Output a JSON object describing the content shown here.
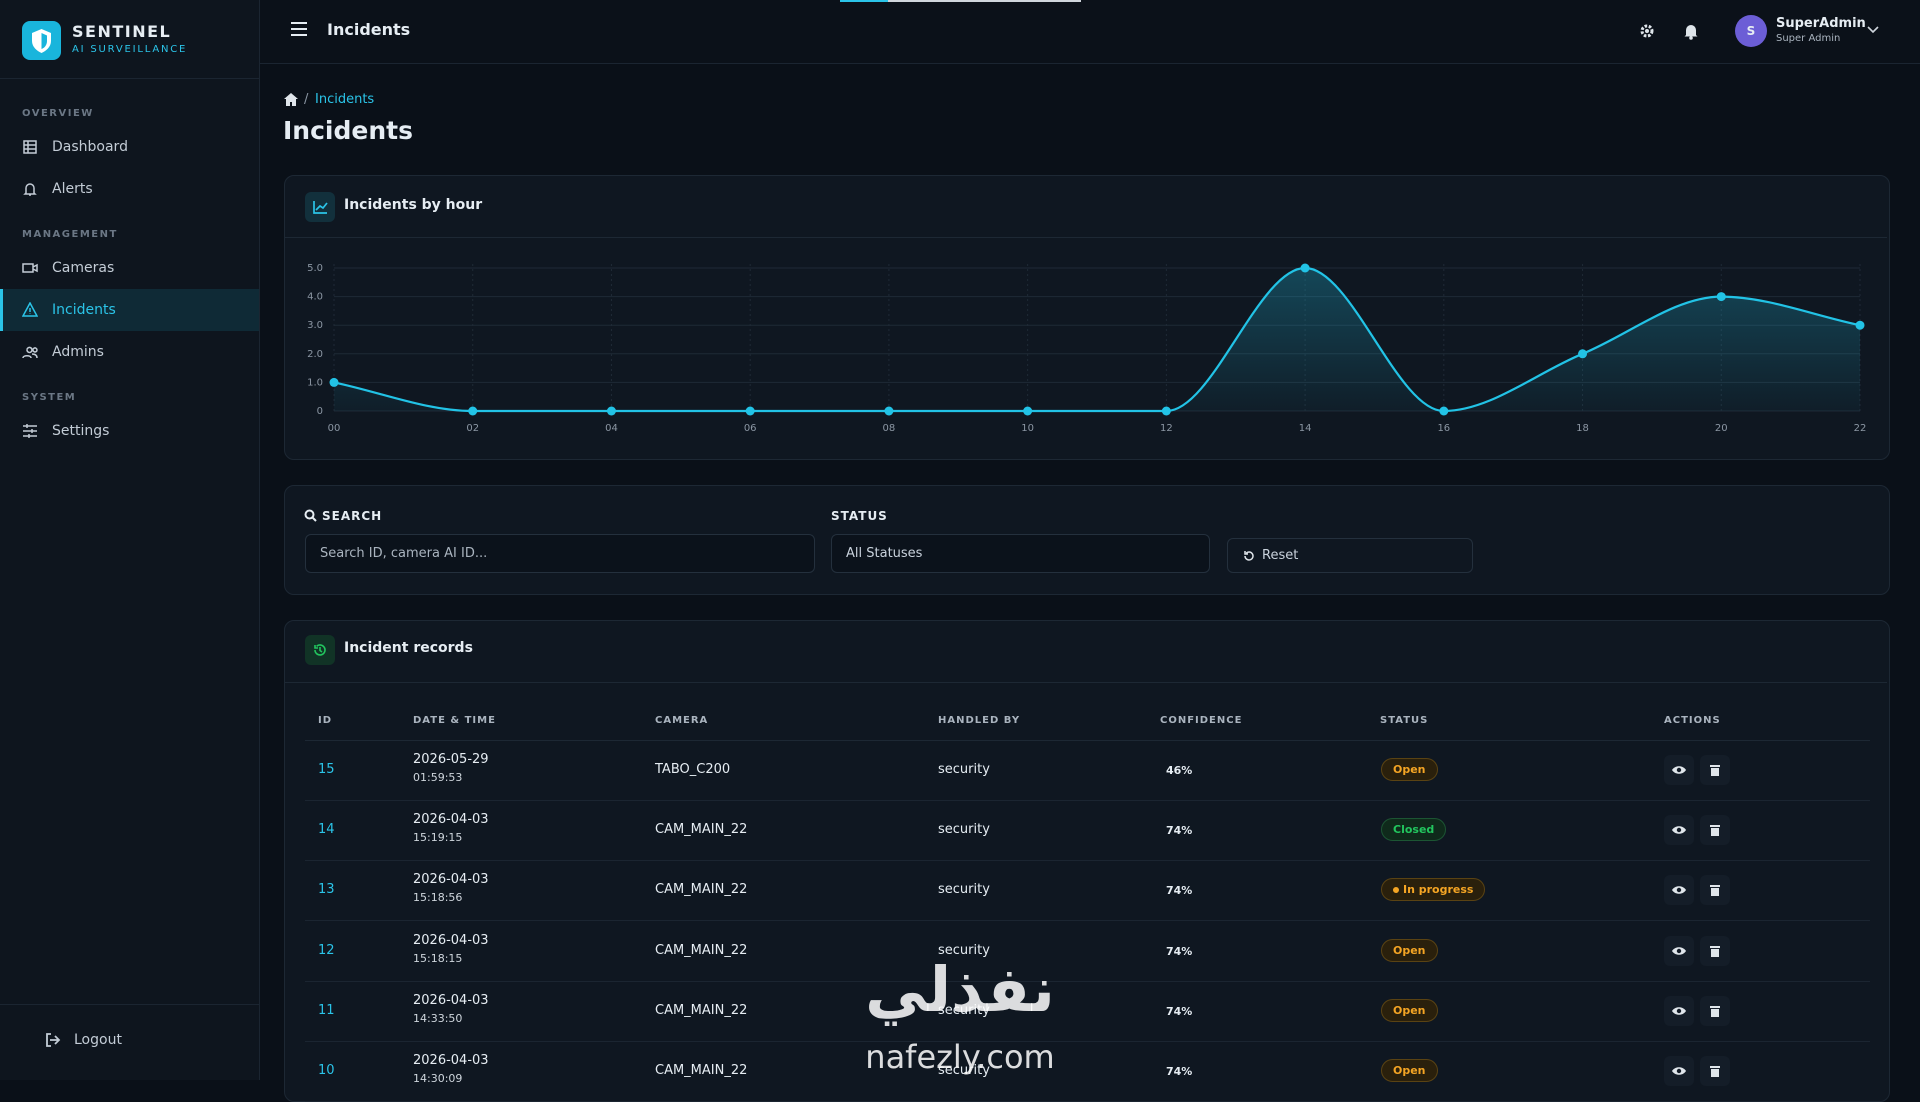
{
  "app": {
    "brand": "SENTINEL",
    "tagline": "AI SURVEILLANCE"
  },
  "sidebar": {
    "sections": [
      {
        "title": "OVERVIEW",
        "items": [
          "Dashboard",
          "Alerts"
        ]
      },
      {
        "title": "MANAGEMENT",
        "items": [
          "Cameras",
          "Incidents",
          "Admins"
        ]
      },
      {
        "title": "SYSTEM",
        "items": [
          "Settings"
        ]
      }
    ],
    "logout": "Logout"
  },
  "header": {
    "title": "Incidents",
    "avatar": "S",
    "user_name": "SuperAdmin",
    "user_role": "Super Admin"
  },
  "breadcrumb": {
    "current": "Incidents"
  },
  "page_title": "Incidents",
  "chart_data": {
    "type": "line",
    "title": "Incidents by hour",
    "color": "#22c3e6",
    "grid": true,
    "categories": [
      "00",
      "02",
      "04",
      "06",
      "08",
      "10",
      "12",
      "14",
      "16",
      "18",
      "20",
      "22"
    ],
    "values": [
      1,
      0,
      0,
      0,
      0,
      0,
      0,
      5,
      0,
      2,
      4,
      3
    ],
    "ylim": [
      0,
      5
    ],
    "yticks": [
      0,
      {
        "value": 1,
        "label": "1.0"
      },
      {
        "value": 2,
        "label": "2.0"
      },
      {
        "value": 3,
        "label": "3.0"
      },
      {
        "value": 4,
        "label": "4.0"
      },
      {
        "value": 5,
        "label": "5.0"
      }
    ]
  },
  "filters": {
    "search_label": "SEARCH",
    "search_placeholder": "Search ID, camera AI ID...",
    "status_label": "STATUS",
    "status_value": "All Statuses",
    "reset": "Reset"
  },
  "records": {
    "title": "Incident records",
    "columns": [
      "ID",
      "DATE & TIME",
      "CAMERA",
      "HANDLED BY",
      "CONFIDENCE",
      "STATUS",
      "ACTIONS"
    ],
    "rows": [
      [
        "15",
        "2026-05-29",
        "01:59:53",
        "TABO_C200",
        "security",
        "46%",
        "Open"
      ],
      [
        "14",
        "2026-04-03",
        "15:19:15",
        "CAM_MAIN_22",
        "security",
        "74%",
        "Closed"
      ],
      [
        "13",
        "2026-04-03",
        "15:18:56",
        "CAM_MAIN_22",
        "security",
        "74%",
        "In progress"
      ],
      [
        "12",
        "2026-04-03",
        "15:18:15",
        "CAM_MAIN_22",
        "security",
        "74%",
        "Open"
      ],
      [
        "11",
        "2026-04-03",
        "14:33:50",
        "CAM_MAIN_22",
        "security",
        "74%",
        "Open"
      ],
      [
        "10",
        "2026-04-03",
        "14:30:09",
        "CAM_MAIN_22",
        "security",
        "74%",
        "Open"
      ]
    ]
  },
  "watermark": {
    "arabic": "نفذلي",
    "latin": "nafezly.com"
  }
}
